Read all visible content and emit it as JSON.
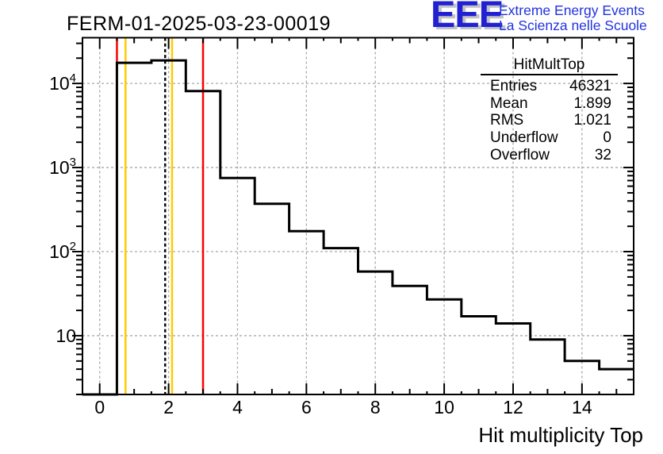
{
  "header": {
    "title": "FERM-01-2025-03-23-00019"
  },
  "logo": {
    "eee": "EEE",
    "line1": "Extreme Energy Events",
    "line2": "La Scienza nelle Scuole",
    "blue": "#2121d4",
    "shadow_gray": "#c3c3c3"
  },
  "stats": {
    "title": "HitMultTop",
    "rows": [
      {
        "label": "Entries",
        "value": "46321"
      },
      {
        "label": "Mean",
        "value": "1.899"
      },
      {
        "label": "RMS",
        "value": "1.021"
      },
      {
        "label": "Underflow",
        "value": "0"
      },
      {
        "label": "Overflow",
        "value": "32"
      }
    ]
  },
  "chart_data": {
    "type": "bar",
    "subtype": "step-histogram",
    "title": "FERM-01-2025-03-23-00019",
    "xlabel": "Hit multiplicity Top",
    "ylabel": "",
    "y_scale": "log",
    "grid": true,
    "legend": false,
    "bin_centers": [
      1,
      2,
      3,
      4,
      5,
      6,
      7,
      8,
      9,
      10,
      11,
      12,
      13,
      14,
      15
    ],
    "bin_width": 1,
    "values": [
      17600,
      18800,
      8100,
      750,
      370,
      175,
      110,
      58,
      39,
      27,
      17,
      14,
      9,
      5,
      4
    ],
    "xlim": [
      -0.5,
      15.5
    ],
    "ylim": [
      2,
      35000
    ],
    "x_major_ticks": [
      0,
      2,
      4,
      6,
      8,
      10,
      12,
      14
    ],
    "x_tick_labels": [
      "0",
      "2",
      "4",
      "6",
      "8",
      "10",
      "12",
      "14"
    ],
    "x_minor_step": 0.5,
    "y_ticks": [
      {
        "value": 10,
        "base": "10",
        "exp": ""
      },
      {
        "value": 100,
        "base": "10",
        "exp": "2"
      },
      {
        "value": 1000,
        "base": "10",
        "exp": "3"
      },
      {
        "value": 10000,
        "base": "10",
        "exp": "4"
      }
    ],
    "markers": {
      "red_solid_lines_x": [
        0.5,
        3.0
      ],
      "yellow_solid_lines_x": [
        0.75,
        2.1
      ],
      "black_dashed_mean_line_x": 1.9
    },
    "colors": {
      "histogram_line": "#000000",
      "frame": "#000000",
      "grid": "#a9a9a9",
      "red_marker": "#ff0000",
      "yellow_marker": "#ffcc00",
      "mean_line": "#000000"
    }
  }
}
